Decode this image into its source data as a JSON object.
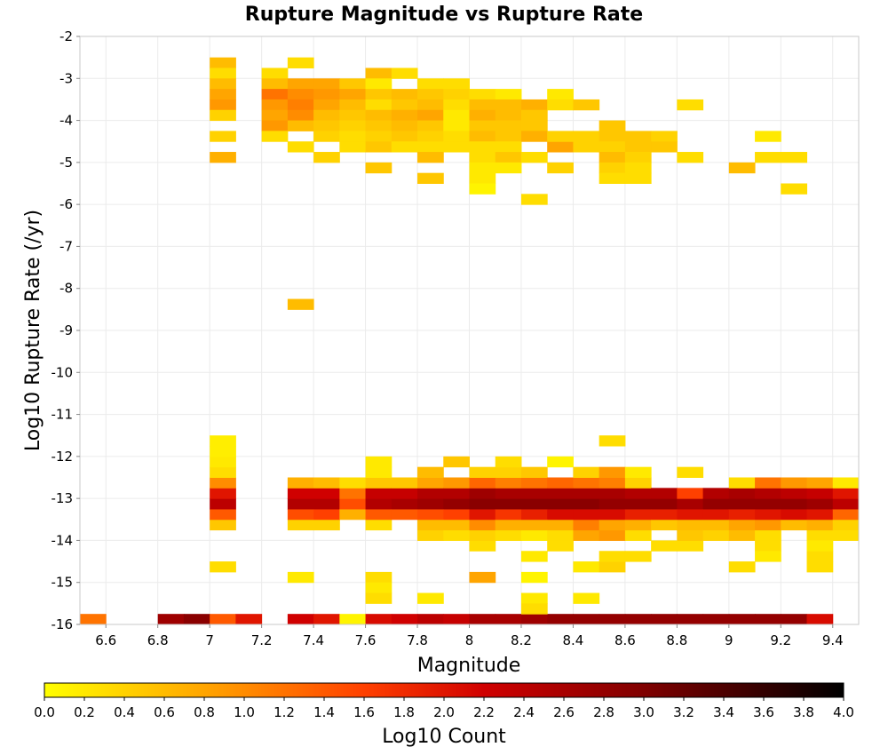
{
  "chart_data": {
    "type": "heatmap",
    "title": "Rupture Magnitude vs Rupture Rate",
    "xlabel": "Magnitude",
    "ylabel": "Log10 Rupture Rate (/yr)",
    "colorbar_label": "Log10 Count",
    "xlim": [
      6.5,
      9.5
    ],
    "ylim": [
      -16,
      -2
    ],
    "bin_width_x": 0.1,
    "bin_height_y": 0.25,
    "xticks": [
      6.6,
      6.8,
      7,
      7.2,
      7.4,
      7.6,
      7.8,
      8,
      8.2,
      8.4,
      8.6,
      8.8,
      9,
      9.2,
      9.4
    ],
    "yticks": [
      -2,
      -3,
      -4,
      -5,
      -6,
      -7,
      -8,
      -9,
      -10,
      -11,
      -12,
      -13,
      -14,
      -15,
      -16
    ],
    "colorbar_range": [
      0.0,
      4.0
    ],
    "colorbar_ticks": [
      "0.0",
      "0.2",
      "0.4",
      "0.6",
      "0.8",
      "1.0",
      "1.2",
      "1.4",
      "1.6",
      "1.8",
      "2.0",
      "2.2",
      "2.4",
      "2.6",
      "2.8",
      "3.0",
      "3.2",
      "3.4",
      "3.6",
      "3.8",
      "4.0"
    ],
    "colormap": [
      "#ffff00",
      "#ffa500",
      "#ff4000",
      "#d00000",
      "#800000",
      "#000000"
    ],
    "grid": true,
    "cells": [
      [
        6.5,
        -16,
        1.2
      ],
      [
        6.8,
        -16,
        2.7
      ],
      [
        6.9,
        -16,
        2.9
      ],
      [
        7.0,
        -16,
        1.4
      ],
      [
        7.1,
        -16,
        2.0
      ],
      [
        7.3,
        -16,
        2.2
      ],
      [
        7.4,
        -16,
        2.0
      ],
      [
        7.5,
        -16,
        0.1
      ],
      [
        7.6,
        -16,
        2.1
      ],
      [
        7.7,
        -16,
        2.2
      ],
      [
        7.8,
        -16,
        2.4
      ],
      [
        7.9,
        -16,
        2.3
      ],
      [
        8.0,
        -16,
        2.6
      ],
      [
        8.1,
        -16,
        2.6
      ],
      [
        8.2,
        -16,
        2.7
      ],
      [
        8.3,
        -16,
        2.8
      ],
      [
        8.4,
        -16,
        2.8
      ],
      [
        8.5,
        -16,
        2.8
      ],
      [
        8.6,
        -16,
        2.8
      ],
      [
        8.7,
        -16,
        2.8
      ],
      [
        8.8,
        -16,
        2.8
      ],
      [
        8.9,
        -16,
        2.8
      ],
      [
        9.0,
        -16,
        2.8
      ],
      [
        9.1,
        -16,
        2.8
      ],
      [
        9.2,
        -16,
        2.8
      ],
      [
        9.3,
        -16,
        2.1
      ],
      [
        7.0,
        -13.75,
        0.5
      ],
      [
        7.0,
        -13.5,
        1.4
      ],
      [
        7.0,
        -13.25,
        2.4
      ],
      [
        7.0,
        -13,
        2.0
      ],
      [
        7.0,
        -12.75,
        1.0
      ],
      [
        7.0,
        -12.5,
        0.3
      ],
      [
        7.0,
        -12.25,
        0.2
      ],
      [
        7.0,
        -12,
        0.15
      ],
      [
        7.0,
        -11.75,
        0.15
      ],
      [
        7.0,
        -14.75,
        0.3
      ],
      [
        7.3,
        -13.75,
        0.4
      ],
      [
        7.3,
        -13.5,
        1.5
      ],
      [
        7.3,
        -13.25,
        2.5
      ],
      [
        7.3,
        -13,
        2.2
      ],
      [
        7.3,
        -12.75,
        0.7
      ],
      [
        7.4,
        -13.75,
        0.4
      ],
      [
        7.4,
        -13.5,
        1.6
      ],
      [
        7.4,
        -13.25,
        2.5
      ],
      [
        7.4,
        -13,
        2.2
      ],
      [
        7.4,
        -12.75,
        0.6
      ],
      [
        7.5,
        -13.5,
        0.7
      ],
      [
        7.5,
        -13.25,
        1.5
      ],
      [
        7.5,
        -13,
        1.2
      ],
      [
        7.5,
        -12.75,
        0.3
      ],
      [
        7.6,
        -13.75,
        0.3
      ],
      [
        7.6,
        -13.5,
        1.4
      ],
      [
        7.6,
        -13.25,
        2.5
      ],
      [
        7.6,
        -13,
        2.3
      ],
      [
        7.6,
        -12.75,
        0.5
      ],
      [
        7.6,
        -12.5,
        0.2
      ],
      [
        7.7,
        -13.5,
        1.4
      ],
      [
        7.7,
        -13.25,
        2.6
      ],
      [
        7.7,
        -13,
        2.3
      ],
      [
        7.7,
        -12.75,
        0.5
      ],
      [
        7.8,
        -14,
        0.4
      ],
      [
        7.8,
        -13.75,
        0.6
      ],
      [
        7.8,
        -13.5,
        1.5
      ],
      [
        7.8,
        -13.25,
        2.7
      ],
      [
        7.8,
        -13,
        2.5
      ],
      [
        7.8,
        -12.75,
        0.8
      ],
      [
        7.8,
        -12.5,
        0.6
      ],
      [
        7.9,
        -14,
        0.3
      ],
      [
        7.9,
        -13.75,
        0.6
      ],
      [
        7.9,
        -13.5,
        1.6
      ],
      [
        7.9,
        -13.25,
        2.8
      ],
      [
        7.9,
        -13,
        2.5
      ],
      [
        7.9,
        -12.75,
        0.9
      ],
      [
        8.0,
        -14.25,
        0.3
      ],
      [
        8.0,
        -14,
        0.4
      ],
      [
        8.0,
        -13.75,
        1.0
      ],
      [
        8.0,
        -13.5,
        2.0
      ],
      [
        8.0,
        -13.25,
        2.9
      ],
      [
        8.0,
        -13,
        2.7
      ],
      [
        8.0,
        -12.75,
        1.3
      ],
      [
        8.0,
        -12.5,
        0.4
      ],
      [
        8.0,
        -15,
        0.8
      ],
      [
        8.1,
        -14,
        0.3
      ],
      [
        8.1,
        -13.75,
        0.7
      ],
      [
        8.1,
        -13.5,
        1.7
      ],
      [
        8.1,
        -13.25,
        2.9
      ],
      [
        8.1,
        -13,
        2.6
      ],
      [
        8.1,
        -12.75,
        1.1
      ],
      [
        8.1,
        -12.5,
        0.4
      ],
      [
        8.2,
        -14.5,
        0.2
      ],
      [
        8.2,
        -14,
        0.2
      ],
      [
        8.2,
        -13.75,
        0.7
      ],
      [
        8.2,
        -13.5,
        1.9
      ],
      [
        8.2,
        -13.25,
        2.9
      ],
      [
        8.2,
        -13,
        2.6
      ],
      [
        8.2,
        -12.75,
        1.2
      ],
      [
        8.2,
        -12.5,
        0.5
      ],
      [
        8.2,
        -15,
        0.1
      ],
      [
        8.3,
        -14.25,
        0.3
      ],
      [
        8.3,
        -14,
        0.3
      ],
      [
        8.3,
        -13.75,
        0.7
      ],
      [
        8.3,
        -13.5,
        2.1
      ],
      [
        8.3,
        -13.25,
        2.9
      ],
      [
        8.3,
        -13,
        2.6
      ],
      [
        8.3,
        -12.75,
        1.3
      ],
      [
        8.3,
        -12.25,
        0.1
      ],
      [
        8.4,
        -14.75,
        0.2
      ],
      [
        8.4,
        -14,
        0.8
      ],
      [
        8.4,
        -13.75,
        1.1
      ],
      [
        8.4,
        -13.5,
        2.1
      ],
      [
        8.4,
        -13.25,
        2.9
      ],
      [
        8.4,
        -13,
        2.6
      ],
      [
        8.4,
        -12.75,
        1.2
      ],
      [
        8.4,
        -12.5,
        0.4
      ],
      [
        8.5,
        -14.75,
        0.4
      ],
      [
        8.5,
        -14.5,
        0.3
      ],
      [
        8.5,
        -14,
        0.9
      ],
      [
        8.5,
        -13.75,
        0.8
      ],
      [
        8.5,
        -13.5,
        2.1
      ],
      [
        8.5,
        -13.25,
        2.8
      ],
      [
        8.5,
        -13,
        2.6
      ],
      [
        8.5,
        -12.75,
        1.1
      ],
      [
        8.5,
        -12.5,
        0.9
      ],
      [
        8.5,
        -11.75,
        0.3
      ],
      [
        8.6,
        -14,
        0.3
      ],
      [
        8.6,
        -13.75,
        0.7
      ],
      [
        8.6,
        -13.5,
        1.9
      ],
      [
        8.6,
        -13.25,
        2.8
      ],
      [
        8.6,
        -13,
        2.5
      ],
      [
        8.6,
        -12.75,
        0.4
      ],
      [
        8.7,
        -13.75,
        0.5
      ],
      [
        8.7,
        -13.5,
        1.9
      ],
      [
        8.7,
        -13.25,
        2.8
      ],
      [
        8.7,
        -13,
        2.5
      ],
      [
        8.8,
        -14.25,
        0.3
      ],
      [
        8.8,
        -14,
        0.5
      ],
      [
        8.8,
        -13.75,
        0.6
      ],
      [
        8.8,
        -13.5,
        2.0
      ],
      [
        8.8,
        -13.25,
        2.6
      ],
      [
        8.8,
        -13,
        1.6
      ],
      [
        8.8,
        -12.5,
        0.3
      ],
      [
        8.9,
        -14,
        0.4
      ],
      [
        8.9,
        -13.75,
        0.6
      ],
      [
        8.9,
        -13.5,
        2.0
      ],
      [
        8.9,
        -13.25,
        2.8
      ],
      [
        8.9,
        -13,
        2.5
      ],
      [
        9.0,
        -14.75,
        0.3
      ],
      [
        9.0,
        -14,
        0.6
      ],
      [
        9.0,
        -13.75,
        0.8
      ],
      [
        9.0,
        -13.5,
        1.9
      ],
      [
        9.0,
        -13.25,
        2.8
      ],
      [
        9.0,
        -13,
        2.6
      ],
      [
        9.0,
        -12.75,
        0.3
      ],
      [
        9.1,
        -14.25,
        0.3
      ],
      [
        9.1,
        -14,
        0.3
      ],
      [
        9.1,
        -13.75,
        0.9
      ],
      [
        9.1,
        -13.5,
        2.0
      ],
      [
        9.1,
        -13.25,
        2.8
      ],
      [
        9.1,
        -13,
        2.5
      ],
      [
        9.1,
        -12.75,
        1.2
      ],
      [
        9.2,
        -13.75,
        0.6
      ],
      [
        9.2,
        -13.5,
        2.1
      ],
      [
        9.2,
        -13.25,
        2.8
      ],
      [
        9.2,
        -13,
        2.4
      ],
      [
        9.2,
        -12.75,
        0.9
      ],
      [
        9.3,
        -14.75,
        0.3
      ],
      [
        9.3,
        -14.5,
        0.3
      ],
      [
        9.3,
        -14,
        0.3
      ],
      [
        9.3,
        -13.75,
        0.7
      ],
      [
        9.3,
        -13.5,
        2.0
      ],
      [
        9.3,
        -13.25,
        2.7
      ],
      [
        9.3,
        -13,
        2.3
      ],
      [
        9.3,
        -12.75,
        0.8
      ],
      [
        9.4,
        -14,
        0.3
      ],
      [
        9.4,
        -13.75,
        0.4
      ],
      [
        9.4,
        -13.5,
        1.3
      ],
      [
        9.4,
        -13.25,
        2.4
      ],
      [
        9.4,
        -13,
        2.0
      ],
      [
        9.4,
        -12.75,
        0.2
      ],
      [
        7.6,
        -12.25,
        0.2
      ],
      [
        7.9,
        -12.25,
        0.5
      ],
      [
        8.1,
        -12.25,
        0.3
      ],
      [
        8.6,
        -12.5,
        0.2
      ],
      [
        7.3,
        -15,
        0.2
      ],
      [
        7.6,
        -15,
        0.3
      ],
      [
        7.6,
        -15.25,
        0.2
      ],
      [
        7.6,
        -15.5,
        0.3
      ],
      [
        7.8,
        -15.5,
        0.2
      ],
      [
        8.2,
        -15.5,
        0.2
      ],
      [
        8.2,
        -15.75,
        0.3
      ],
      [
        8.4,
        -15.5,
        0.2
      ],
      [
        8.6,
        -14.5,
        0.3
      ],
      [
        8.7,
        -14.25,
        0.3
      ],
      [
        9.3,
        -14.25,
        0.2
      ],
      [
        9.1,
        -14.5,
        0.2
      ],
      [
        7.3,
        -8.5,
        0.6
      ],
      [
        7.0,
        -2.75,
        0.6
      ],
      [
        7.0,
        -3,
        0.3
      ],
      [
        7.0,
        -3.25,
        0.6
      ],
      [
        7.0,
        -3.5,
        0.8
      ],
      [
        7.0,
        -3.75,
        0.9
      ],
      [
        7.0,
        -4,
        0.4
      ],
      [
        7.0,
        -4.5,
        0.4
      ],
      [
        7.0,
        -5,
        0.7
      ],
      [
        7.2,
        -3,
        0.3
      ],
      [
        7.2,
        -3.25,
        0.6
      ],
      [
        7.2,
        -3.5,
        1.2
      ],
      [
        7.2,
        -3.75,
        0.9
      ],
      [
        7.2,
        -4,
        0.8
      ],
      [
        7.2,
        -4.25,
        0.9
      ],
      [
        7.2,
        -4.5,
        0.3
      ],
      [
        7.3,
        -2.75,
        0.3
      ],
      [
        7.3,
        -3.25,
        0.8
      ],
      [
        7.3,
        -3.5,
        1.0
      ],
      [
        7.3,
        -3.75,
        1.1
      ],
      [
        7.3,
        -4,
        1.0
      ],
      [
        7.3,
        -4.25,
        0.6
      ],
      [
        7.3,
        -4.75,
        0.3
      ],
      [
        7.4,
        -3.25,
        0.8
      ],
      [
        7.4,
        -3.5,
        0.9
      ],
      [
        7.4,
        -3.75,
        0.8
      ],
      [
        7.4,
        -4,
        0.6
      ],
      [
        7.4,
        -4.25,
        0.5
      ],
      [
        7.4,
        -4.5,
        0.4
      ],
      [
        7.4,
        -5,
        0.4
      ],
      [
        7.5,
        -3.25,
        0.5
      ],
      [
        7.5,
        -3.5,
        0.8
      ],
      [
        7.5,
        -3.75,
        0.6
      ],
      [
        7.5,
        -4,
        0.5
      ],
      [
        7.5,
        -4.25,
        0.4
      ],
      [
        7.5,
        -4.5,
        0.3
      ],
      [
        7.5,
        -4.75,
        0.3
      ],
      [
        7.6,
        -3,
        0.6
      ],
      [
        7.6,
        -3.25,
        0.2
      ],
      [
        7.6,
        -3.5,
        0.5
      ],
      [
        7.6,
        -3.75,
        0.3
      ],
      [
        7.6,
        -4,
        0.6
      ],
      [
        7.6,
        -4.25,
        0.5
      ],
      [
        7.6,
        -4.5,
        0.4
      ],
      [
        7.6,
        -4.75,
        0.5
      ],
      [
        7.6,
        -5.25,
        0.5
      ],
      [
        7.7,
        -3,
        0.3
      ],
      [
        7.7,
        -3.5,
        0.6
      ],
      [
        7.7,
        -3.75,
        0.5
      ],
      [
        7.7,
        -4,
        0.7
      ],
      [
        7.7,
        -4.25,
        0.6
      ],
      [
        7.7,
        -4.5,
        0.5
      ],
      [
        7.7,
        -4.75,
        0.3
      ],
      [
        7.8,
        -3.25,
        0.3
      ],
      [
        7.8,
        -3.5,
        0.5
      ],
      [
        7.8,
        -3.75,
        0.6
      ],
      [
        7.8,
        -4,
        0.8
      ],
      [
        7.8,
        -4.25,
        0.5
      ],
      [
        7.8,
        -4.5,
        0.4
      ],
      [
        7.8,
        -4.75,
        0.3
      ],
      [
        7.8,
        -5,
        0.6
      ],
      [
        7.8,
        -5.5,
        0.5
      ],
      [
        7.9,
        -3.25,
        0.3
      ],
      [
        7.9,
        -3.5,
        0.4
      ],
      [
        7.9,
        -3.75,
        0.3
      ],
      [
        7.9,
        -4,
        0.2
      ],
      [
        7.9,
        -4.25,
        0.2
      ],
      [
        7.9,
        -4.5,
        0.3
      ],
      [
        7.9,
        -4.75,
        0.3
      ],
      [
        8.0,
        -3.5,
        0.3
      ],
      [
        8.0,
        -3.75,
        0.6
      ],
      [
        8.0,
        -4,
        0.7
      ],
      [
        8.0,
        -4.25,
        0.5
      ],
      [
        8.0,
        -4.5,
        0.6
      ],
      [
        8.0,
        -4.75,
        0.3
      ],
      [
        8.0,
        -5,
        0.3
      ],
      [
        8.0,
        -5.25,
        0.2
      ],
      [
        8.0,
        -5.5,
        0.2
      ],
      [
        8.0,
        -5.75,
        0.1
      ],
      [
        8.1,
        -3.5,
        0.2
      ],
      [
        8.1,
        -3.75,
        0.6
      ],
      [
        8.1,
        -4,
        0.6
      ],
      [
        8.1,
        -4.25,
        0.5
      ],
      [
        8.1,
        -4.5,
        0.5
      ],
      [
        8.1,
        -4.75,
        0.3
      ],
      [
        8.1,
        -5,
        0.5
      ],
      [
        8.1,
        -5.25,
        0.2
      ],
      [
        8.2,
        -3.75,
        0.7
      ],
      [
        8.2,
        -4,
        0.5
      ],
      [
        8.2,
        -4.25,
        0.5
      ],
      [
        8.2,
        -4.5,
        0.7
      ],
      [
        8.2,
        -5,
        0.3
      ],
      [
        8.2,
        -6,
        0.3
      ],
      [
        8.3,
        -3.5,
        0.2
      ],
      [
        8.3,
        -3.75,
        0.3
      ],
      [
        8.3,
        -4.75,
        0.8
      ],
      [
        8.3,
        -4.5,
        0.4
      ],
      [
        8.3,
        -5.25,
        0.4
      ],
      [
        8.4,
        -3.75,
        0.5
      ],
      [
        8.4,
        -4.5,
        0.4
      ],
      [
        8.4,
        -4.75,
        0.4
      ],
      [
        8.5,
        -4.25,
        0.5
      ],
      [
        8.5,
        -4.5,
        0.5
      ],
      [
        8.5,
        -4.75,
        0.4
      ],
      [
        8.5,
        -5,
        0.6
      ],
      [
        8.5,
        -5.25,
        0.4
      ],
      [
        8.5,
        -5.5,
        0.3
      ],
      [
        8.6,
        -4.5,
        0.5
      ],
      [
        8.6,
        -4.75,
        0.5
      ],
      [
        8.6,
        -5,
        0.4
      ],
      [
        8.6,
        -5.25,
        0.3
      ],
      [
        8.6,
        -5.5,
        0.3
      ],
      [
        8.7,
        -4.5,
        0.4
      ],
      [
        8.7,
        -4.75,
        0.5
      ],
      [
        8.8,
        -3.75,
        0.3
      ],
      [
        8.8,
        -5,
        0.3
      ],
      [
        9.0,
        -5.25,
        0.6
      ],
      [
        9.1,
        -4.5,
        0.2
      ],
      [
        9.1,
        -5,
        0.3
      ],
      [
        9.2,
        -5,
        0.3
      ],
      [
        9.2,
        -5.75,
        0.3
      ]
    ]
  }
}
